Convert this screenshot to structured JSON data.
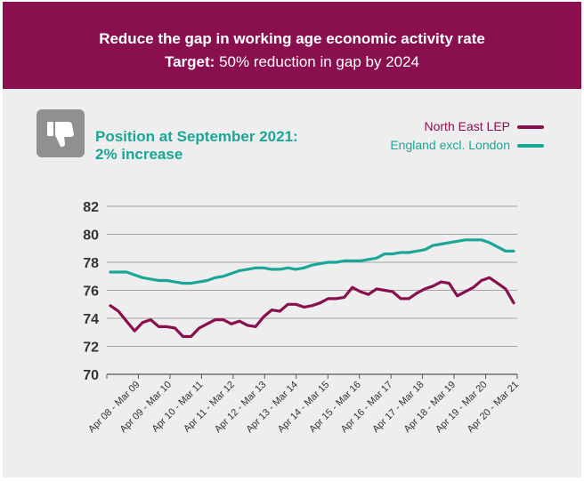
{
  "banner": {
    "title": "Reduce the gap in working age economic activity rate",
    "target_label": "Target:",
    "target_text": " 50% reduction in gap by 2024"
  },
  "status": {
    "icon": "thumbs-down-icon",
    "line1": "Position at September 2021:",
    "line2": "2% increase"
  },
  "colors": {
    "banner": "#8a0f4f",
    "north_east": "#8a0f4f",
    "england": "#1aa698",
    "panel": "#eeeeee"
  },
  "chart_data": {
    "type": "line",
    "title": "",
    "xlabel": "",
    "ylabel": "",
    "ylim": [
      70,
      82
    ],
    "yticks": [
      70,
      72,
      74,
      76,
      78,
      80,
      82
    ],
    "grid": "horizontal",
    "legend": "top-right",
    "x_tick_labels": [
      "Apr 08 - Mar 09",
      "Apr 09 - Mar 10",
      "Apr 10 - Mar 11",
      "Apr 11 - Mar 12",
      "Apr 12 - Mar 13",
      "Apr 13 - Mar 14",
      "Apr 14 - Mar 15",
      "Apr 15 - Mar 16",
      "Apr 16 - Mar 17",
      "Apr 17 - Mar 18",
      "Apr 18 - Mar 19",
      "Apr 19 - Mar 20",
      "Apr 20 - Mar 21"
    ],
    "series": [
      {
        "name": "North East LEP",
        "values": [
          74.9,
          74.5,
          73.8,
          73.1,
          73.7,
          73.9,
          73.4,
          73.4,
          73.3,
          72.7,
          72.7,
          73.3,
          73.6,
          73.9,
          73.9,
          73.6,
          73.8,
          73.5,
          73.4,
          74.1,
          74.6,
          74.5,
          75.0,
          75.0,
          74.8,
          74.9,
          75.1,
          75.4,
          75.4,
          75.5,
          76.2,
          75.9,
          75.7,
          76.1,
          76.0,
          75.9,
          75.4,
          75.4,
          75.8,
          76.1,
          76.3,
          76.6,
          76.5,
          75.6,
          75.9,
          76.2,
          76.7,
          76.9,
          76.5,
          76.1,
          75.1
        ]
      },
      {
        "name": "England excl. London",
        "values": [
          77.3,
          77.3,
          77.3,
          77.1,
          76.9,
          76.8,
          76.7,
          76.7,
          76.6,
          76.5,
          76.5,
          76.6,
          76.7,
          76.9,
          77.0,
          77.2,
          77.4,
          77.5,
          77.6,
          77.6,
          77.5,
          77.5,
          77.6,
          77.5,
          77.6,
          77.8,
          77.9,
          78.0,
          78.0,
          78.1,
          78.1,
          78.1,
          78.2,
          78.3,
          78.6,
          78.6,
          78.7,
          78.7,
          78.8,
          78.9,
          79.2,
          79.3,
          79.4,
          79.5,
          79.6,
          79.6,
          79.6,
          79.4,
          79.1,
          78.8,
          78.8
        ]
      }
    ]
  }
}
